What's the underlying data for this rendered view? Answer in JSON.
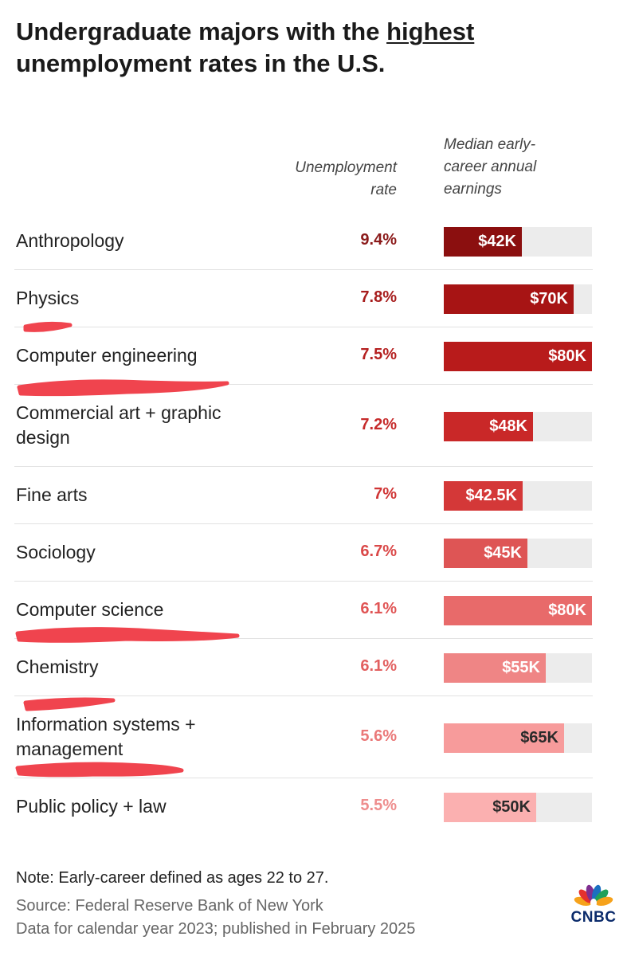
{
  "title": {
    "before": "Undergraduate majors with the ",
    "emphasis": "highest",
    "after": " unemployment rates in the U.S."
  },
  "columns": {
    "rate": [
      "Unemployment",
      "rate"
    ],
    "earnings": [
      "Median early-",
      "career annual",
      "earnings"
    ]
  },
  "chart_data": {
    "type": "table",
    "title": "Undergraduate majors with the highest unemployment rates in the U.S.",
    "columns": [
      "",
      "Unemployment rate",
      "Median early-career annual earnings"
    ],
    "rows": [
      {
        "major": "Anthropology",
        "rate_label": "9.4%",
        "rate": 9.4,
        "earnings_label": "$42K",
        "earnings": 42000,
        "bar_color": "#8b0f0f",
        "rate_color": "#8b1a1a",
        "label_color": "#ffffff",
        "highlighted": false
      },
      {
        "major": "Physics",
        "rate_label": "7.8%",
        "rate": 7.8,
        "earnings_label": "$70K",
        "earnings": 70000,
        "bar_color": "#a71414",
        "rate_color": "#a71d1d",
        "label_color": "#ffffff",
        "highlighted": true
      },
      {
        "major": "Computer engineering",
        "rate_label": "7.5%",
        "rate": 7.5,
        "earnings_label": "$80K",
        "earnings": 80000,
        "bar_color": "#b81b1b",
        "rate_color": "#b52020",
        "label_color": "#ffffff",
        "highlighted": true
      },
      {
        "major": "Commercial art + graphic design",
        "rate_label": "7.2%",
        "rate": 7.2,
        "earnings_label": "$48K",
        "earnings": 48000,
        "bar_color": "#c92828",
        "rate_color": "#c62a2a",
        "label_color": "#ffffff",
        "highlighted": false
      },
      {
        "major": "Fine arts",
        "rate_label": "7%",
        "rate": 7.0,
        "earnings_label": "$42.5K",
        "earnings": 42500,
        "bar_color": "#d43838",
        "rate_color": "#d03535",
        "label_color": "#ffffff",
        "highlighted": false
      },
      {
        "major": "Sociology",
        "rate_label": "6.7%",
        "rate": 6.7,
        "earnings_label": "$45K",
        "earnings": 45000,
        "bar_color": "#de5555",
        "rate_color": "#da4848",
        "label_color": "#ffffff",
        "highlighted": false
      },
      {
        "major": "Computer science",
        "rate_label": "6.1%",
        "rate": 6.1,
        "earnings_label": "$80K",
        "earnings": 80000,
        "bar_color": "#e86a6a",
        "rate_color": "#e05555",
        "label_color": "#ffffff",
        "highlighted": true
      },
      {
        "major": "Chemistry",
        "rate_label": "6.1%",
        "rate": 6.1,
        "earnings_label": "$55K",
        "earnings": 55000,
        "bar_color": "#ef8585",
        "rate_color": "#e26060",
        "label_color": "#ffffff",
        "highlighted": false
      },
      {
        "major": "Information systems + management",
        "rate_label": "5.6%",
        "rate": 5.6,
        "earnings_label": "$65K",
        "earnings": 65000,
        "bar_color": "#f79b9b",
        "rate_color": "#ea7878",
        "label_color": "#2a2a2a",
        "highlighted": true
      },
      {
        "major": "Public policy + law",
        "rate_label": "5.5%",
        "rate": 5.5,
        "earnings_label": "$50K",
        "earnings": 50000,
        "bar_color": "#fbb0b0",
        "rate_color": "#ee8d8d",
        "label_color": "#2a2a2a",
        "highlighted": false
      }
    ],
    "earnings_max": 80000
  },
  "footer": {
    "note": "Note: Early-career defined as ages 22 to 27.",
    "source_lines": [
      "Source: Federal Reserve Bank of New York",
      "Data for calendar year 2023; published in February 2025"
    ]
  },
  "brand": {
    "name": "CNBC",
    "logo_icon": "peacock-icon",
    "feather_colors": [
      "#f6a21b",
      "#e4312d",
      "#7f2e8f",
      "#1b6fc0",
      "#21a05a",
      "#f6a21b"
    ]
  },
  "annotation_color": "#f0444e"
}
